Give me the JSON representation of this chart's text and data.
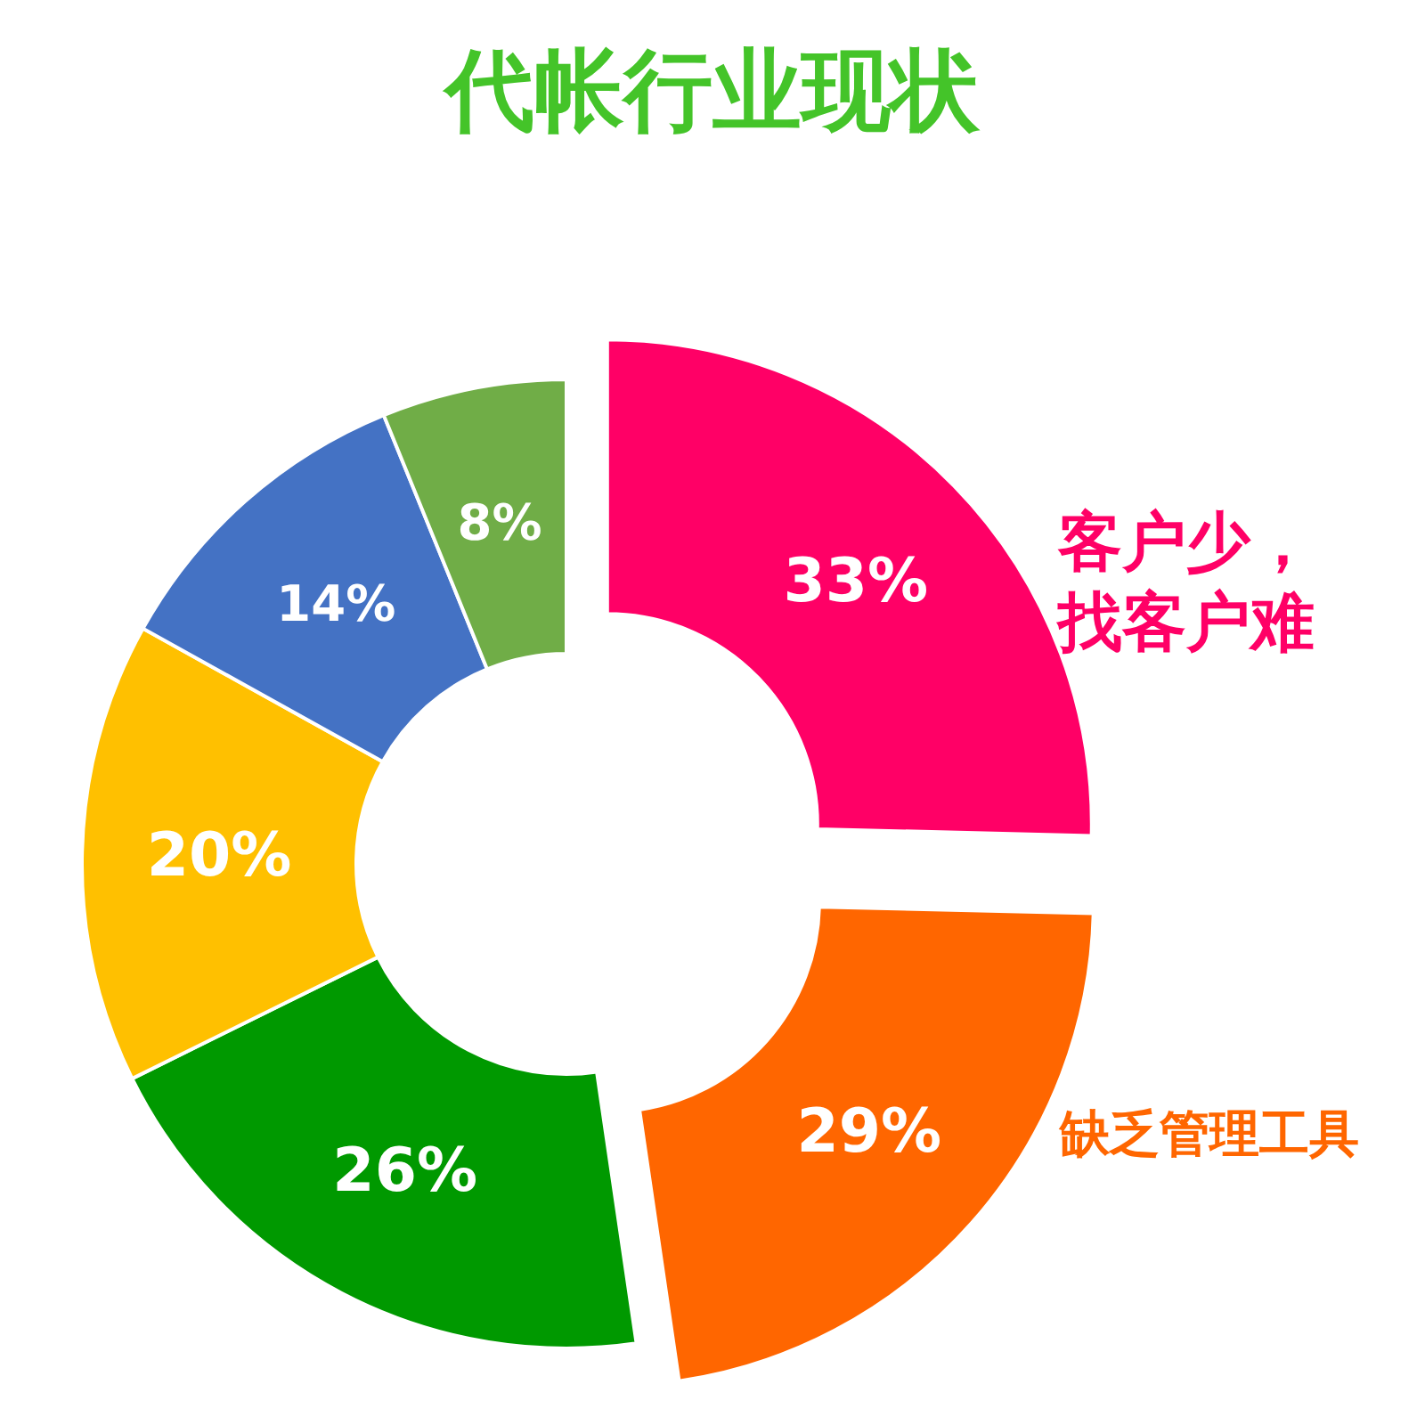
{
  "chart_data": {
    "type": "donut",
    "title": "代帐行业现状",
    "categories": [
      "客户少，找客户难",
      "缺乏管理工具",
      null,
      null,
      null,
      null
    ],
    "values": [
      33,
      29,
      26,
      20,
      14,
      8
    ],
    "value_labels": [
      "33%",
      "29%",
      "26%",
      "20%",
      "14%",
      "8%"
    ],
    "colors": [
      "#ff0066",
      "#ff6600",
      "#009900",
      "#ffc000",
      "#4472c4",
      "#70ad47"
    ],
    "legend": false
  }
}
